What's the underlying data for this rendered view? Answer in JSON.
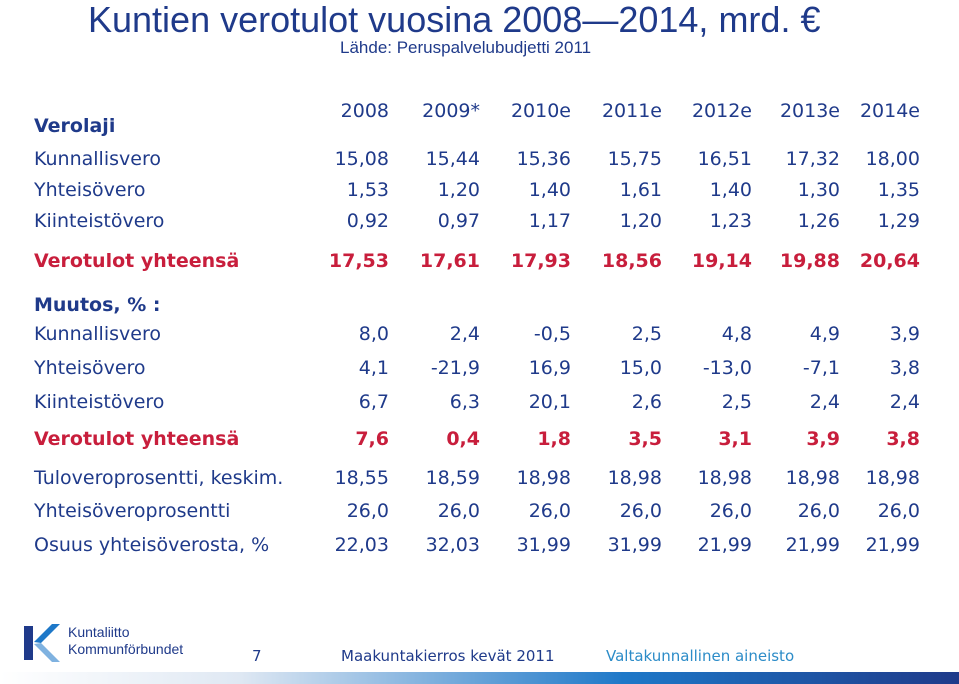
{
  "title": "Kuntien verotulot vuosina 2008—2014, mrd. €",
  "subtitle": "Lähde: Peruspalvelubudjetti 2011",
  "header": {
    "label": "Verolaji",
    "years": [
      "2008",
      "2009*",
      "2010e",
      "2011e",
      "2012e",
      "2013e",
      "2014e"
    ]
  },
  "taxes": [
    {
      "label": "Kunnallisvero",
      "values": [
        "15,08",
        "15,44",
        "15,36",
        "15,75",
        "16,51",
        "17,32",
        "18,00"
      ]
    },
    {
      "label": "Yhteisövero",
      "values": [
        "1,53",
        "1,20",
        "1,40",
        "1,61",
        "1,40",
        "1,30",
        "1,35"
      ]
    },
    {
      "label": "Kiinteistövero",
      "values": [
        "0,92",
        "0,97",
        "1,17",
        "1,20",
        "1,23",
        "1,26",
        "1,29"
      ]
    }
  ],
  "total": {
    "label": "Verotulot yhteensä",
    "values": [
      "17,53",
      "17,61",
      "17,93",
      "18,56",
      "19,14",
      "19,88",
      "20,64"
    ]
  },
  "change_heading": "Muutos, % :",
  "changes": [
    {
      "label": "Kunnallisvero",
      "values": [
        "8,0",
        "2,4",
        "-0,5",
        "2,5",
        "4,8",
        "4,9",
        "3,9"
      ]
    },
    {
      "label": "Yhteisövero",
      "values": [
        "4,1",
        "-21,9",
        "16,9",
        "15,0",
        "-13,0",
        "-7,1",
        "3,8"
      ]
    },
    {
      "label": "Kiinteistövero",
      "values": [
        "6,7",
        "6,3",
        "20,1",
        "2,6",
        "2,5",
        "2,4",
        "2,4"
      ]
    }
  ],
  "change_total": {
    "label": "Verotulot yhteensä",
    "values": [
      "7,6",
      "0,4",
      "1,8",
      "3,5",
      "3,1",
      "3,9",
      "3,8"
    ]
  },
  "rates": [
    {
      "label": "Tuloveroprosentti, keskim.",
      "values": [
        "18,55",
        "18,59",
        "18,98",
        "18,98",
        "18,98",
        "18,98",
        "18,98"
      ]
    },
    {
      "label": "Yhteisöveroprosentti",
      "values": [
        "26,0",
        "26,0",
        "26,0",
        "26,0",
        "26,0",
        "26,0",
        "26,0"
      ]
    },
    {
      "label": "Osuus yhteisöverosta, %",
      "values": [
        "22,03",
        "32,03",
        "31,99",
        "31,99",
        "21,99",
        "21,99",
        "21,99"
      ]
    }
  ],
  "footer": {
    "logo_line1": "Kuntaliitto",
    "logo_line2": "Kommunförbundet",
    "page_number": "7",
    "event": "Maakuntakierros kevät 2011",
    "note": "Valtakunnallinen aineisto",
    "colors": {
      "navy": "#1f3a8a",
      "red": "#c81e3c",
      "blue": "#1e78c8"
    }
  }
}
